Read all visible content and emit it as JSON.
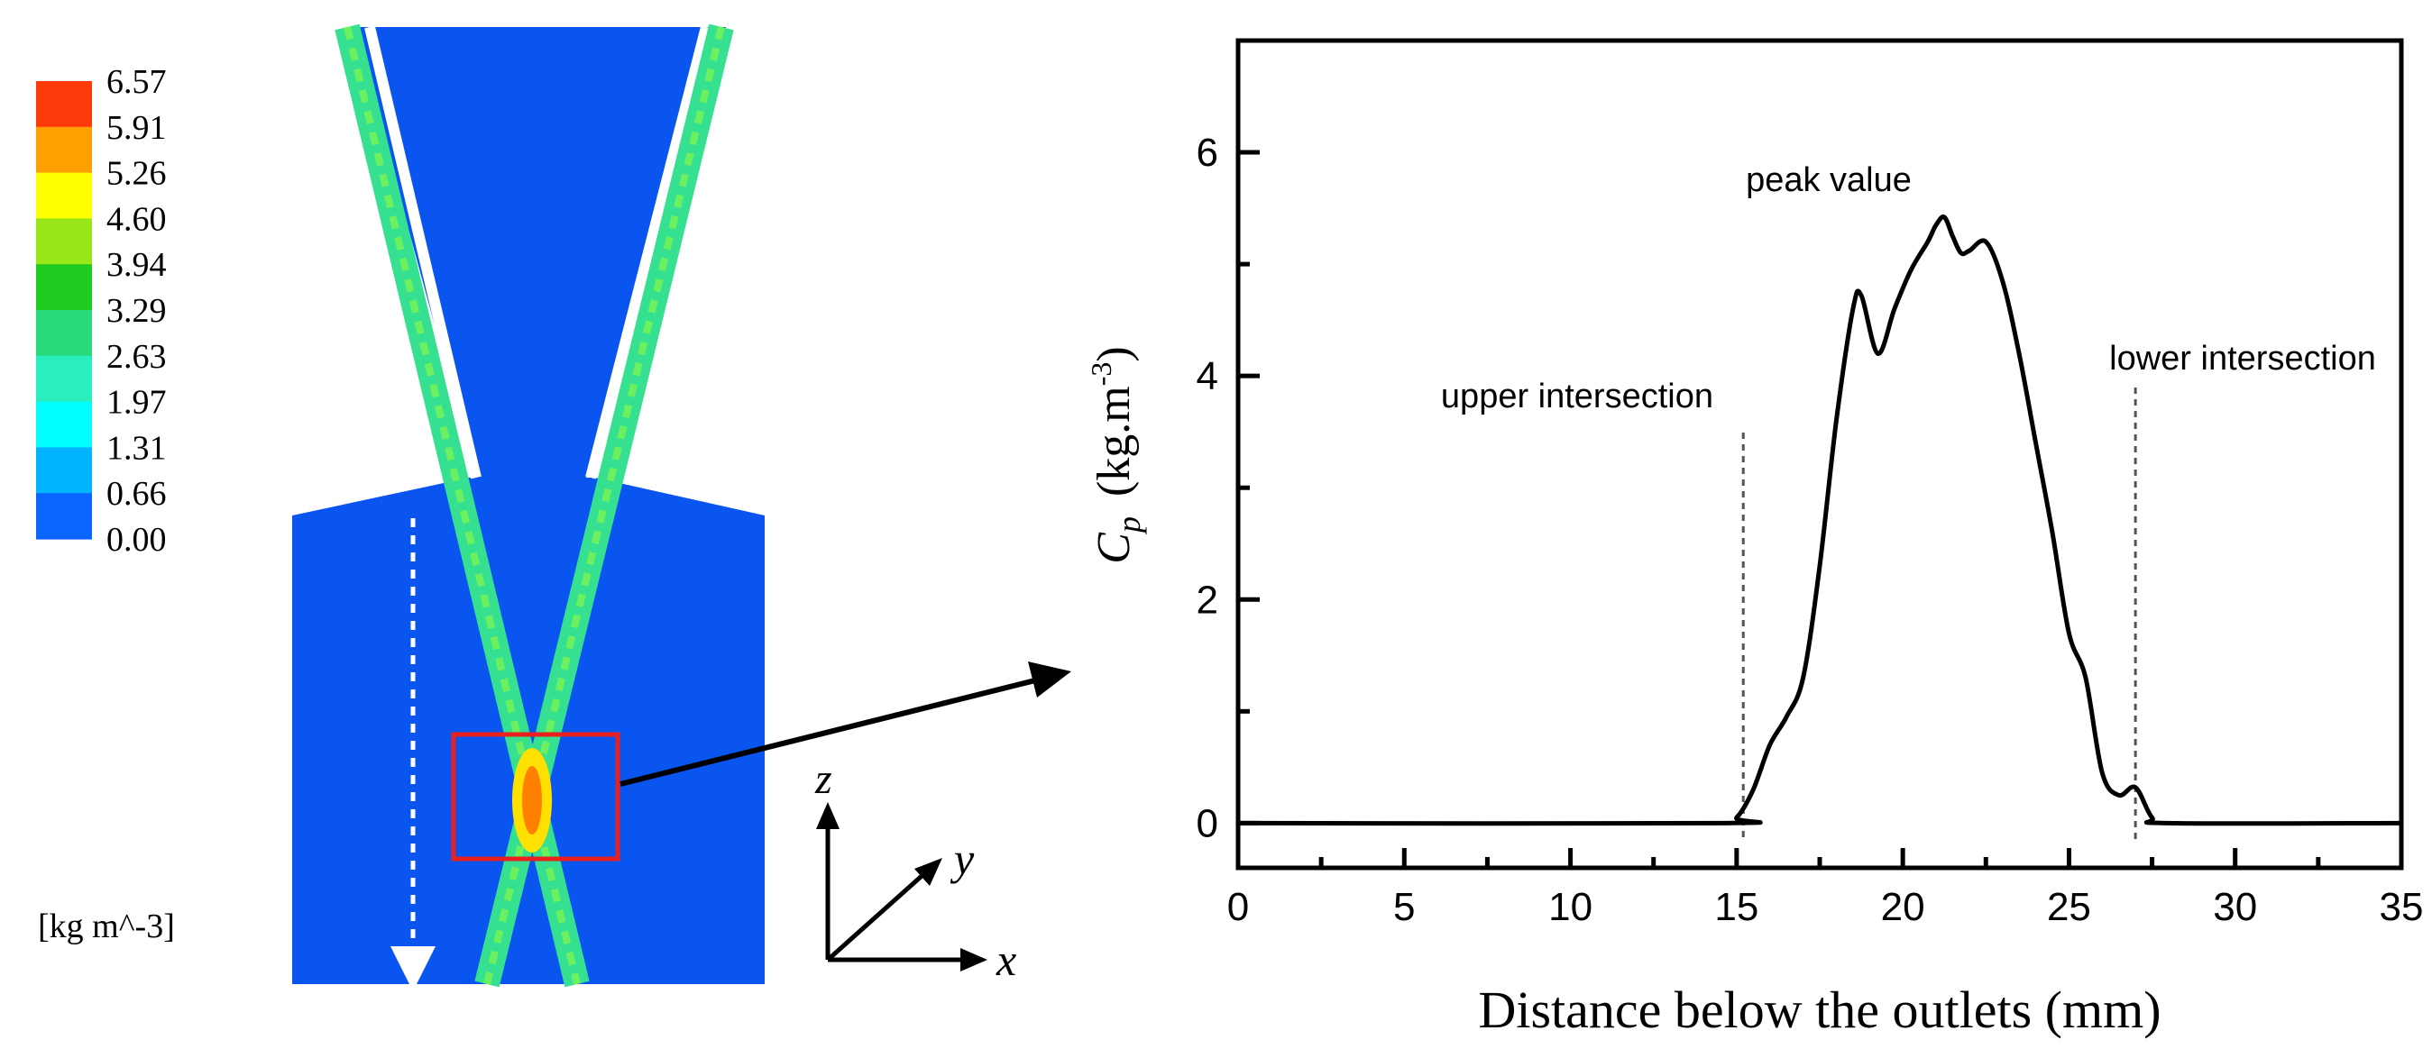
{
  "colorbar": {
    "ticks": [
      "6.57",
      "5.91",
      "5.26",
      "4.60",
      "3.94",
      "3.29",
      "2.63",
      "1.97",
      "1.31",
      "0.66",
      "0.00"
    ],
    "unit_label": "[kg m^-3]",
    "band_colors": [
      "#ff3a0a",
      "#ffa000",
      "#ffff00",
      "#99e619",
      "#1fcc1f",
      "#2ad97a",
      "#2aeebb",
      "#00ffff",
      "#00b4ff",
      "#0a64ff"
    ]
  },
  "simulation_colors": {
    "background": "#0a55f0",
    "jet": "#35e090",
    "jet_core": "#6cf060",
    "hot_core": "#ffe000",
    "hot_edge": "#ff8000",
    "highlight_box": "#e82020"
  },
  "axes_triad": {
    "z_label": "z",
    "y_label": "y",
    "x_label": "x"
  },
  "chart_data": {
    "type": "line",
    "xlabel": "Distance below the outlets (mm)",
    "ylabel_symbol": "C",
    "ylabel_sub": "p",
    "ylabel_units_open": "(kg.m",
    "ylabel_units_sup": "-3",
    "ylabel_units_close": ")",
    "xlim": [
      0,
      35
    ],
    "ylim": [
      -0.4,
      7
    ],
    "x_ticks": [
      "0",
      "5",
      "10",
      "15",
      "20",
      "25",
      "30",
      "35"
    ],
    "y_ticks": [
      "0",
      "2",
      "4",
      "6"
    ],
    "annotations": {
      "peak": "peak value",
      "upper": "upper intersection",
      "lower": "lower intersection"
    },
    "upper_intersection_x": 15.2,
    "lower_intersection_x": 27.0,
    "series": [
      {
        "x": [
          0,
          14.5,
          15.0,
          15.5,
          16.0,
          16.5,
          17.0,
          17.5,
          18.0,
          18.5,
          18.75,
          19.25,
          19.75,
          20.25,
          20.75,
          21.0,
          21.25,
          21.5,
          21.75,
          22.0,
          22.5,
          23.0,
          23.5,
          24.0,
          24.5,
          25.0,
          25.5,
          26.0,
          26.5,
          27.0,
          27.5,
          28.0,
          35
        ],
        "y": [
          0,
          0,
          0.05,
          0.3,
          0.7,
          0.95,
          1.3,
          2.3,
          3.6,
          4.6,
          4.72,
          4.2,
          4.6,
          4.95,
          5.2,
          5.35,
          5.42,
          5.25,
          5.1,
          5.12,
          5.2,
          4.85,
          4.2,
          3.4,
          2.6,
          1.7,
          1.3,
          0.45,
          0.25,
          0.32,
          0.05,
          0,
          0
        ]
      }
    ]
  }
}
